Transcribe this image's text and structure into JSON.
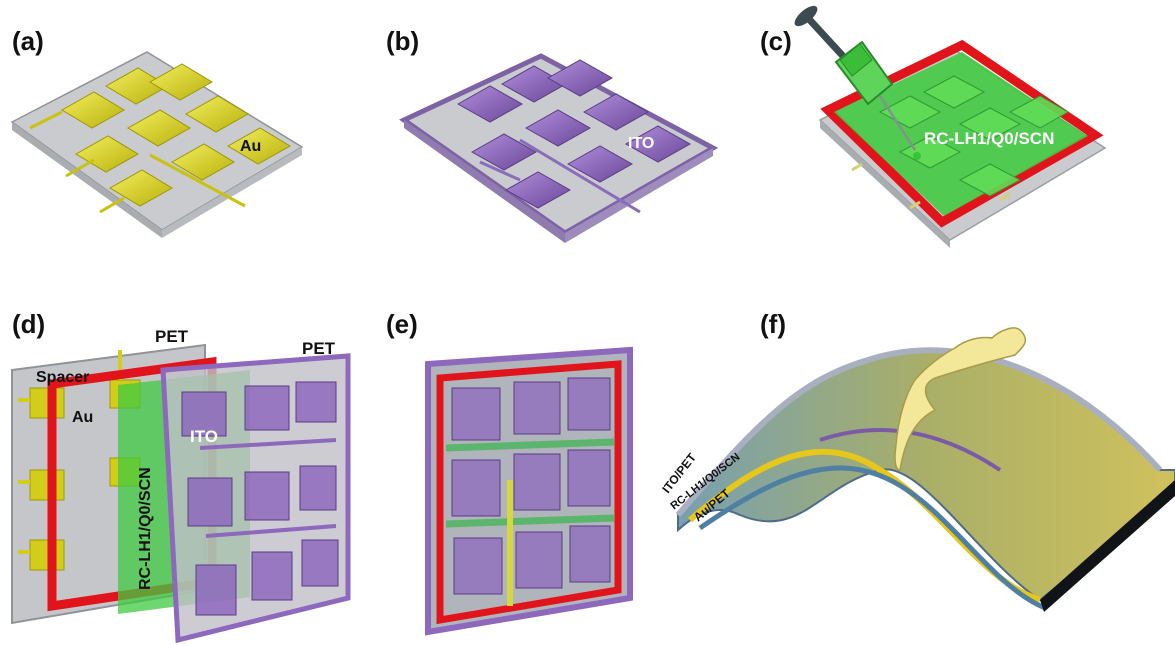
{
  "panels": {
    "a": {
      "tag": "(a)",
      "electrode_label": "Au"
    },
    "b": {
      "tag": "(b)",
      "electrode_label": "ITO"
    },
    "c": {
      "tag": "(c)",
      "layer_label": "RC-LH1/Q0/SCN"
    },
    "d": {
      "tag": "(d)",
      "pet_back_label": "PET",
      "pet_front_label": "PET",
      "spacer_label": "Spacer",
      "au_label": "Au",
      "layer_label": "RC-LH1/Q0/SCN",
      "ito_label": "ITO"
    },
    "e": {
      "tag": "(e)"
    },
    "f": {
      "tag": "(f)",
      "stack_labels": [
        "ITO/PET",
        "RC-LH1/Q0/SCN",
        "Au/PET"
      ]
    }
  },
  "colors": {
    "gold": "#d6d11c",
    "purple": "#8d68bd",
    "green": "#38c23a",
    "red_spacer": "#e0141a",
    "substrate": "#c7c9cc"
  }
}
